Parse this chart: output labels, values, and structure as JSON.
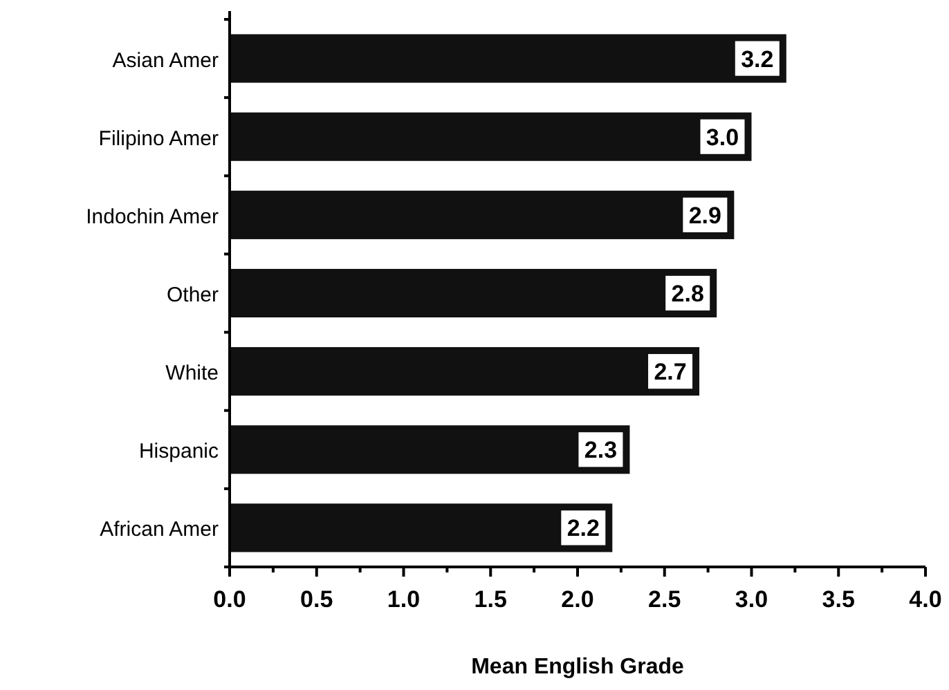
{
  "chart_data": {
    "type": "bar",
    "orientation": "horizontal",
    "xlabel": "Mean English Grade",
    "categories": [
      "Asian Amer",
      "Filipino Amer",
      "Indochin Amer",
      "Other",
      "White",
      "Hispanic",
      "African Amer"
    ],
    "values": [
      3.2,
      3.0,
      2.9,
      2.8,
      2.7,
      2.3,
      2.2
    ],
    "value_labels": [
      "3.2",
      "3.0",
      "2.9",
      "2.8",
      "2.7",
      "2.3",
      "2.2"
    ],
    "color": "#111111",
    "xlim": [
      0,
      4
    ],
    "xticks": [
      {
        "value": 0,
        "label": "0.0"
      },
      {
        "value": 0.25,
        "label": null
      },
      {
        "value": 0.5,
        "label": "0.5"
      },
      {
        "value": 0.75,
        "label": null
      },
      {
        "value": 1,
        "label": "1.0"
      },
      {
        "value": 1.25,
        "label": null
      },
      {
        "value": 1.5,
        "label": "1.5"
      },
      {
        "value": 1.75,
        "label": null
      },
      {
        "value": 2,
        "label": "2.0"
      },
      {
        "value": 2.25,
        "label": null
      },
      {
        "value": 2.5,
        "label": "2.5"
      },
      {
        "value": 2.75,
        "label": null
      },
      {
        "value": 3,
        "label": "3.0"
      },
      {
        "value": 3.25,
        "label": null
      },
      {
        "value": 3.5,
        "label": "3.5"
      },
      {
        "value": 3.75,
        "label": null
      },
      {
        "value": 4,
        "label": "4.0"
      }
    ],
    "grid": false
  }
}
